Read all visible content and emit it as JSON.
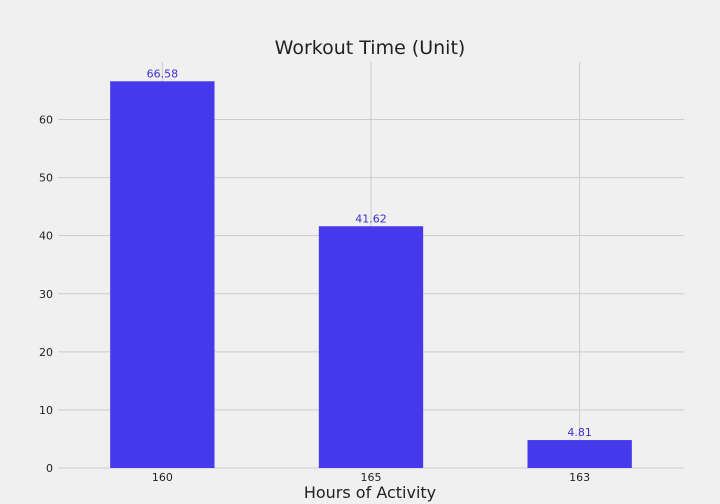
{
  "chart_data": {
    "type": "bar",
    "title": "Workout Time (Unit)",
    "xlabel": "Hours of Activity",
    "ylabel": "",
    "categories": [
      "160",
      "165",
      "163"
    ],
    "values": [
      66.58,
      41.62,
      4.81
    ],
    "value_labels": [
      "66.58",
      "41.62",
      "4.81"
    ],
    "ylim": [
      0,
      69.9
    ],
    "yticks": [
      0,
      10,
      20,
      30,
      40,
      50,
      60
    ],
    "grid": true,
    "bar_color": "#4639eb",
    "label_color": "#3b2fd0"
  }
}
